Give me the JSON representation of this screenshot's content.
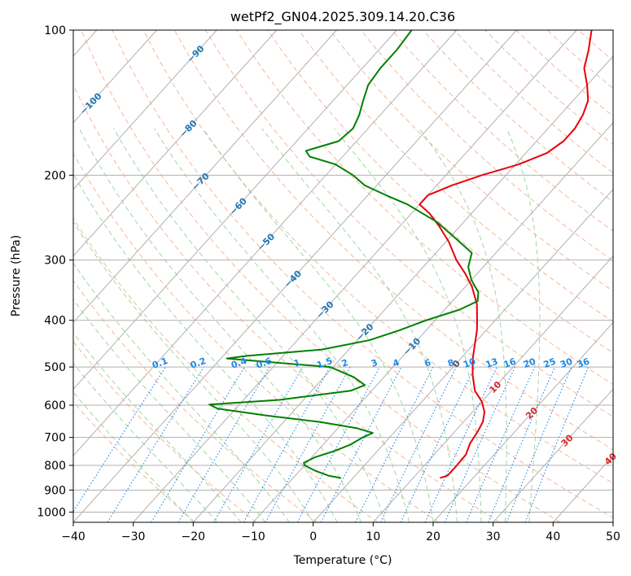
{
  "chart_data": {
    "type": "line",
    "subtype": "skew-t",
    "title": "wetPf2_GN04.2025.309.14.20.C36",
    "xlabel": "Temperature (°C)",
    "ylabel": "Pressure (hPa)",
    "xlim": [
      -40,
      50
    ],
    "ylim": [
      1050,
      100
    ],
    "yscale": "log",
    "grid": true,
    "x_ticks": [
      "−40",
      "−30",
      "−20",
      "−10",
      "0",
      "10",
      "20",
      "30",
      "40",
      "50"
    ],
    "y_ticks": [
      {
        "p": 100,
        "label": "100"
      },
      {
        "p": 200,
        "label": "200"
      },
      {
        "p": 300,
        "label": "300"
      },
      {
        "p": 400,
        "label": "400"
      },
      {
        "p": 500,
        "label": "500"
      },
      {
        "p": 600,
        "label": "600"
      },
      {
        "p": 700,
        "label": "700"
      },
      {
        "p": 800,
        "label": "800"
      },
      {
        "p": 900,
        "label": "900"
      },
      {
        "p": 1000,
        "label": "1000"
      }
    ],
    "series": [
      {
        "role": "temperature",
        "color": "#e8000b",
        "points": [
          {
            "p": 850,
            "t": 14.5
          },
          {
            "p": 840,
            "t": 15.4
          },
          {
            "p": 800,
            "t": 15.4
          },
          {
            "p": 760,
            "t": 15.3
          },
          {
            "p": 720,
            "t": 14.3
          },
          {
            "p": 680,
            "t": 13.8
          },
          {
            "p": 650,
            "t": 13.2
          },
          {
            "p": 620,
            "t": 12.0
          },
          {
            "p": 590,
            "t": 10.0
          },
          {
            "p": 560,
            "t": 7.2
          },
          {
            "p": 520,
            "t": 4.5
          },
          {
            "p": 480,
            "t": 2.0
          },
          {
            "p": 450,
            "t": 0.3
          },
          {
            "p": 420,
            "t": -1.5
          },
          {
            "p": 400,
            "t": -3.0
          },
          {
            "p": 370,
            "t": -5.5
          },
          {
            "p": 340,
            "t": -9.0
          },
          {
            "p": 320,
            "t": -12.0
          },
          {
            "p": 300,
            "t": -15.5
          },
          {
            "p": 275,
            "t": -19.5
          },
          {
            "p": 255,
            "t": -23.5
          },
          {
            "p": 240,
            "t": -27.0
          },
          {
            "p": 230,
            "t": -30.0
          },
          {
            "p": 220,
            "t": -30.0
          },
          {
            "p": 210,
            "t": -27.5
          },
          {
            "p": 200,
            "t": -24.0
          },
          {
            "p": 190,
            "t": -19.5
          },
          {
            "p": 180,
            "t": -16.5
          },
          {
            "p": 170,
            "t": -15.5
          },
          {
            "p": 160,
            "t": -15.5
          },
          {
            "p": 150,
            "t": -16.2
          },
          {
            "p": 140,
            "t": -17.5
          },
          {
            "p": 130,
            "t": -20.0
          },
          {
            "p": 120,
            "t": -23.0
          },
          {
            "p": 110,
            "t": -25.0
          },
          {
            "p": 100,
            "t": -27.5
          }
        ]
      },
      {
        "role": "dewpoint",
        "color": "#008000",
        "points": [
          {
            "p": 850,
            "t": -2.0
          },
          {
            "p": 840,
            "t": -4.5
          },
          {
            "p": 820,
            "t": -7.5
          },
          {
            "p": 800,
            "t": -10.0
          },
          {
            "p": 790,
            "t": -10.5
          },
          {
            "p": 770,
            "t": -9.5
          },
          {
            "p": 745,
            "t": -7.0
          },
          {
            "p": 725,
            "t": -5.5
          },
          {
            "p": 700,
            "t": -4.5
          },
          {
            "p": 685,
            "t": -3.5
          },
          {
            "p": 670,
            "t": -6.8
          },
          {
            "p": 650,
            "t": -14.0
          },
          {
            "p": 630,
            "t": -24.0
          },
          {
            "p": 610,
            "t": -33.0
          },
          {
            "p": 598,
            "t": -35.0
          },
          {
            "p": 585,
            "t": -24.0
          },
          {
            "p": 560,
            "t": -13.5
          },
          {
            "p": 545,
            "t": -12.0
          },
          {
            "p": 525,
            "t": -15.0
          },
          {
            "p": 500,
            "t": -20.5
          },
          {
            "p": 485,
            "t": -34.5
          },
          {
            "p": 480,
            "t": -39.0
          },
          {
            "p": 474,
            "t": -36.0
          },
          {
            "p": 460,
            "t": -24.5
          },
          {
            "p": 440,
            "t": -18.0
          },
          {
            "p": 420,
            "t": -14.5
          },
          {
            "p": 400,
            "t": -11.5
          },
          {
            "p": 380,
            "t": -7.5
          },
          {
            "p": 365,
            "t": -5.8
          },
          {
            "p": 350,
            "t": -7.0
          },
          {
            "p": 330,
            "t": -10.0
          },
          {
            "p": 310,
            "t": -12.5
          },
          {
            "p": 290,
            "t": -14.0
          },
          {
            "p": 270,
            "t": -19.0
          },
          {
            "p": 250,
            "t": -24.5
          },
          {
            "p": 230,
            "t": -32.0
          },
          {
            "p": 220,
            "t": -37.0
          },
          {
            "p": 210,
            "t": -42.0
          },
          {
            "p": 200,
            "t": -45.5
          },
          {
            "p": 190,
            "t": -50.0
          },
          {
            "p": 183,
            "t": -55.5
          },
          {
            "p": 178,
            "t": -57.0
          },
          {
            "p": 170,
            "t": -53.0
          },
          {
            "p": 160,
            "t": -52.5
          },
          {
            "p": 150,
            "t": -53.5
          },
          {
            "p": 140,
            "t": -55.0
          },
          {
            "p": 130,
            "t": -56.5
          },
          {
            "p": 120,
            "t": -57.0
          },
          {
            "p": 110,
            "t": -57.0
          },
          {
            "p": 100,
            "t": -57.5
          }
        ]
      }
    ],
    "isotherm_labels": [
      "−100",
      "−90",
      "−80",
      "−70",
      "−60",
      "−50",
      "−40",
      "−30",
      "−20",
      "−10",
      "0",
      "10",
      "20",
      "30",
      "40"
    ],
    "mixing_ratio_labels": [
      "0.1",
      "0.2",
      "0.4",
      "0.6",
      "1",
      "1.5",
      "2",
      "3",
      "4",
      "6",
      "8",
      "10",
      "13",
      "16",
      "20",
      "25",
      "30",
      "36"
    ],
    "colors": {
      "temperature": "#e8000b",
      "dewpoint": "#008000",
      "isotherm_label_cold": "#1f77b4",
      "isotherm_label_zero": "#555555",
      "isotherm_label_warm": "#d62728",
      "mixing_ratio": "#1e88e5",
      "dry_adiabat": "#f4a582",
      "moist_adiabat": "#8fcf8f",
      "grid": "#b0b0b0"
    }
  }
}
